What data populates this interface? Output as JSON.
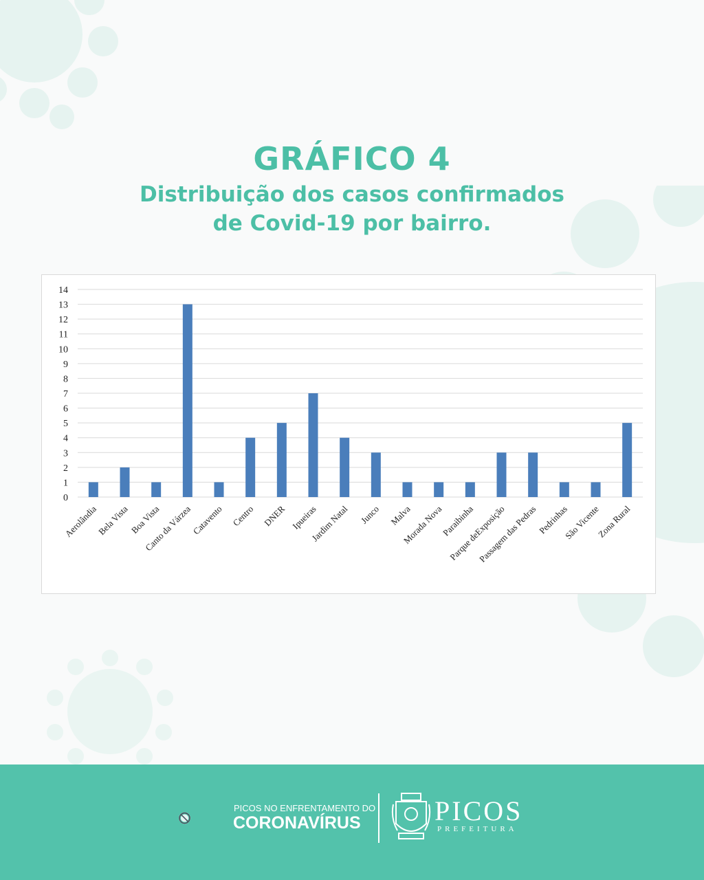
{
  "header": {
    "title": "GRÁFICO 4",
    "subtitle_line1": "Distribuição dos casos confirmados",
    "subtitle_line2": "de Covid-19 por bairro."
  },
  "chart_data": {
    "type": "bar",
    "categories": [
      "Aerolândia",
      "Bela Vista",
      "Boa Vista",
      "Canto da Várzea",
      "Catavento",
      "Centro",
      "DNER",
      "Ipueiras",
      "Jardim Natal",
      "Junco",
      "Malva",
      "Morada Nova",
      "Paraibinha",
      "Parque deExposição",
      "Passagem das Pedras",
      "Pedrinhas",
      "São Vicente",
      "Zona Rural"
    ],
    "values": [
      1,
      2,
      1,
      13,
      1,
      4,
      5,
      7,
      4,
      3,
      1,
      1,
      1,
      3,
      3,
      1,
      1,
      5
    ],
    "title": "",
    "xlabel": "",
    "ylabel": "",
    "ylim": [
      0,
      14
    ],
    "yticks": [
      0,
      1,
      2,
      3,
      4,
      5,
      6,
      7,
      8,
      9,
      10,
      11,
      12,
      13,
      14
    ],
    "grid": true,
    "legend": "none",
    "bar_color": "#4a7ebb"
  },
  "footer": {
    "campaign_line1": "PICOS NO ENFRENTAMENTO DO",
    "campaign_line2": "CORONAVÍRUS",
    "brand_name": "PICOS",
    "brand_sub": "PREFEITURA"
  },
  "colors": {
    "accent": "#4cbfa6",
    "footer_bg": "#53c2ab",
    "decor": "#e6f3f0"
  },
  "icons": [
    "virus-decoration-icon",
    "no-virus-icon",
    "city-crest-icon"
  ]
}
